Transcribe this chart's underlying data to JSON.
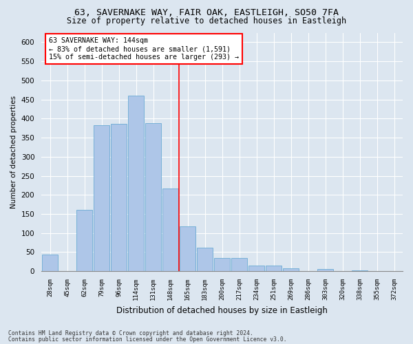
{
  "title1": "63, SAVERNAKE WAY, FAIR OAK, EASTLEIGH, SO50 7FA",
  "title2": "Size of property relative to detached houses in Eastleigh",
  "xlabel": "Distribution of detached houses by size in Eastleigh",
  "ylabel": "Number of detached properties",
  "footnote1": "Contains HM Land Registry data © Crown copyright and database right 2024.",
  "footnote2": "Contains public sector information licensed under the Open Government Licence v3.0.",
  "bar_labels": [
    "28sqm",
    "45sqm",
    "62sqm",
    "79sqm",
    "96sqm",
    "114sqm",
    "131sqm",
    "148sqm",
    "165sqm",
    "183sqm",
    "200sqm",
    "217sqm",
    "234sqm",
    "251sqm",
    "269sqm",
    "286sqm",
    "303sqm",
    "320sqm",
    "338sqm",
    "355sqm",
    "372sqm"
  ],
  "bar_values": [
    43,
    0,
    160,
    383,
    386,
    460,
    388,
    216,
    118,
    62,
    35,
    35,
    15,
    15,
    8,
    0,
    5,
    0,
    3,
    0,
    0
  ],
  "bar_color": "#aec6e8",
  "bar_edgecolor": "#6aaad4",
  "vline_x": 7.5,
  "vline_color": "red",
  "annotation_text": "63 SAVERNAKE WAY: 144sqm\n← 83% of detached houses are smaller (1,591)\n15% of semi-detached houses are larger (293) →",
  "annotation_box_facecolor": "white",
  "annotation_box_edgecolor": "red",
  "ylim": [
    0,
    625
  ],
  "yticks": [
    0,
    50,
    100,
    150,
    200,
    250,
    300,
    350,
    400,
    450,
    500,
    550,
    600
  ],
  "background_color": "#dce6f0",
  "plot_background": "#dce6f0",
  "grid_color": "white",
  "title1_fontsize": 9.5,
  "title2_fontsize": 8.5
}
